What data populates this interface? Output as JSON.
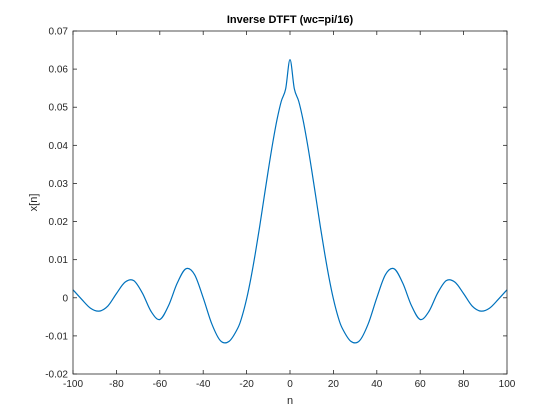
{
  "chart_data": {
    "type": "line",
    "title": "Inverse DTFT (wc=pi/16)",
    "xlabel": "n",
    "ylabel": "x[n]",
    "xlim": [
      -100,
      100
    ],
    "ylim": [
      -0.02,
      0.07
    ],
    "xticks": [
      -100,
      -80,
      -60,
      -40,
      -20,
      0,
      20,
      40,
      60,
      80,
      100
    ],
    "yticks": [
      -0.02,
      -0.01,
      0,
      0.01,
      0.02,
      0.03,
      0.04,
      0.05,
      0.06,
      0.07
    ],
    "xtick_labels": [
      "-100",
      "-80",
      "-60",
      "-40",
      "-20",
      "0",
      "20",
      "40",
      "60",
      "80",
      "100"
    ],
    "ytick_labels": [
      "-0.02",
      "-0.01",
      "0",
      "0.01",
      "0.02",
      "0.03",
      "0.04",
      "0.05",
      "0.06",
      "0.07"
    ],
    "grid": false,
    "series": [
      {
        "color": "#0072BD",
        "x": [
          -100,
          -96,
          -92,
          -88,
          -84,
          -80,
          -76,
          -72,
          -68,
          -64,
          -60,
          -56,
          -52,
          -48,
          -44,
          -40,
          -36,
          -32,
          -28,
          -24,
          -22,
          -20,
          -18,
          -16,
          -14,
          -12,
          -10,
          -8,
          -6,
          -4,
          -2,
          0,
          2,
          4,
          6,
          8,
          10,
          12,
          14,
          16,
          18,
          20,
          22,
          24,
          28,
          32,
          36,
          40,
          44,
          48,
          52,
          56,
          60,
          64,
          68,
          72,
          76,
          80,
          84,
          88,
          92,
          96,
          100
        ],
        "y": [
          0.0021,
          -0.0004,
          -0.0027,
          -0.0035,
          -0.0022,
          0.0011,
          0.0041,
          0.0045,
          0.0012,
          -0.0036,
          -0.0057,
          -0.0021,
          0.0038,
          0.0076,
          0.0061,
          0,
          -0.0069,
          -0.0113,
          -0.0114,
          -0.0079,
          -0.0047,
          -0.0003,
          0.0052,
          0.0116,
          0.0186,
          0.0261,
          0.0335,
          0.0405,
          0.0467,
          0.0516,
          0.0548,
          0.0625,
          0.0548,
          0.0516,
          0.0467,
          0.0405,
          0.0335,
          0.0261,
          0.0186,
          0.0116,
          0.0052,
          -0.0003,
          -0.0047,
          -0.0079,
          -0.0114,
          -0.0113,
          -0.0069,
          0,
          0.0061,
          0.0076,
          0.0038,
          -0.0021,
          -0.0057,
          -0.0036,
          0.0012,
          0.0045,
          0.0041,
          0.0011,
          -0.0022,
          -0.0035,
          -0.0027,
          -0.0004,
          0.0021
        ]
      }
    ]
  }
}
